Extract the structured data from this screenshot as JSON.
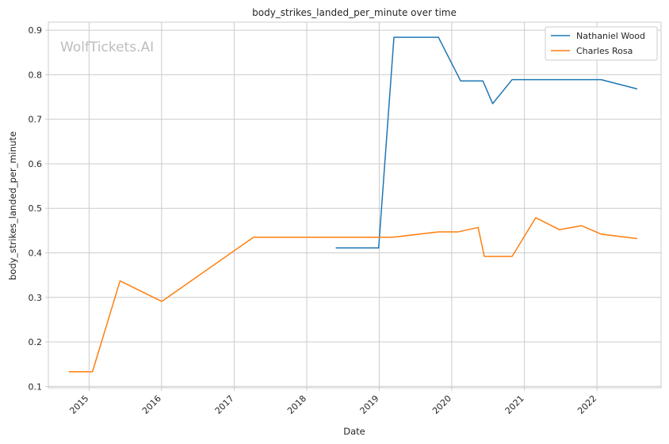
{
  "watermark": "WolfTickets.AI",
  "chart_data": {
    "type": "line",
    "title": "body_strikes_landed_per_minute over time",
    "xlabel": "Date",
    "ylabel": "body_strikes_landed_per_minute",
    "x_axis_type": "date",
    "xlim": [
      "2014-06-10",
      "2022-11-20"
    ],
    "ylim": [
      0.097,
      0.918
    ],
    "x_ticks": [
      "2015",
      "2016",
      "2017",
      "2018",
      "2019",
      "2020",
      "2021",
      "2022"
    ],
    "y_ticks": [
      0.1,
      0.2,
      0.3,
      0.4,
      0.5,
      0.6,
      0.7,
      0.8,
      0.9
    ],
    "grid": true,
    "legend_position": "top-right",
    "series": [
      {
        "name": "Nathaniel Wood",
        "color": "#1f77b4",
        "x": [
          "2018-05-27",
          "2018-12-29",
          "2019-03-16",
          "2019-10-26",
          "2020-02-15",
          "2020-06-06",
          "2020-07-25",
          "2020-10-31",
          "2021-03-20",
          "2022-01-22",
          "2022-07-23"
        ],
        "y": [
          0.411,
          0.411,
          0.884,
          0.884,
          0.786,
          0.786,
          0.735,
          0.789,
          0.789,
          0.789,
          0.768
        ]
      },
      {
        "name": "Charles Rosa",
        "color": "#ff7f0e",
        "x": [
          "2014-09-20",
          "2015-01-18",
          "2015-06-06",
          "2016-01-02",
          "2017-04-08",
          "2018-12-29",
          "2019-03-09",
          "2019-10-26",
          "2020-02-01",
          "2020-05-13",
          "2020-06-13",
          "2020-10-31",
          "2021-02-27",
          "2021-06-26",
          "2021-10-16",
          "2022-01-22",
          "2022-07-23"
        ],
        "y": [
          0.133,
          0.133,
          0.337,
          0.291,
          0.435,
          0.435,
          0.435,
          0.447,
          0.447,
          0.457,
          0.392,
          0.392,
          0.479,
          0.452,
          0.461,
          0.442,
          0.432
        ]
      }
    ]
  }
}
